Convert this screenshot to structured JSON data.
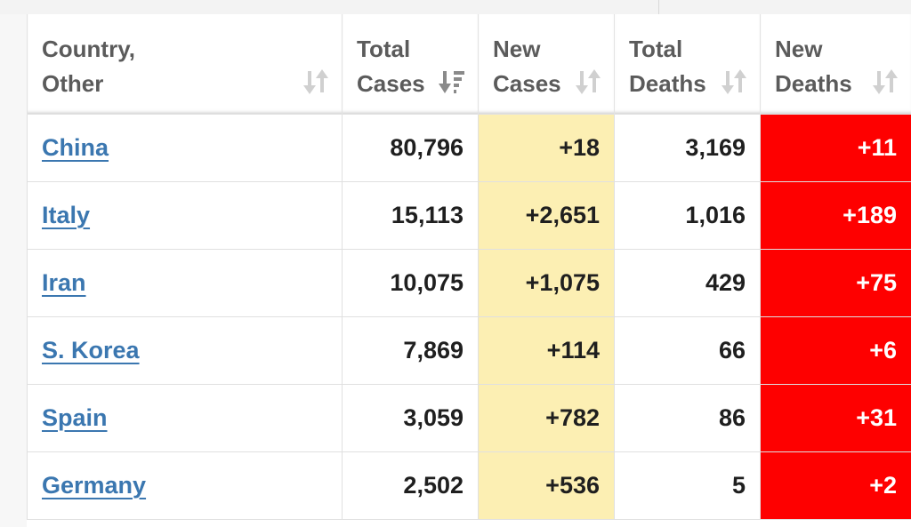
{
  "colors": {
    "link": "#3b77b0",
    "new_cases_bg": "#fcefb3",
    "new_deaths_bg": "#fe0000",
    "header_text": "#5b5b5b"
  },
  "table": {
    "headers": {
      "country": "Country,\nOther",
      "total_cases": "Total\nCases",
      "new_cases": "New\nCases",
      "total_deaths": "Total\nDeaths",
      "new_deaths": "New\nDeaths"
    },
    "sort_icons": {
      "country": "sort-neutral-icon",
      "total_cases": "sort-descending-icon",
      "new_cases": "sort-neutral-icon",
      "total_deaths": "sort-neutral-icon",
      "new_deaths": "sort-neutral-icon"
    },
    "rows": [
      {
        "country": "China",
        "total_cases": "80,796",
        "new_cases": "+18",
        "total_deaths": "3,169",
        "new_deaths": "+11"
      },
      {
        "country": "Italy",
        "total_cases": "15,113",
        "new_cases": "+2,651",
        "total_deaths": "1,016",
        "new_deaths": "+189"
      },
      {
        "country": "Iran",
        "total_cases": "10,075",
        "new_cases": "+1,075",
        "total_deaths": "429",
        "new_deaths": "+75"
      },
      {
        "country": "S. Korea",
        "total_cases": "7,869",
        "new_cases": "+114",
        "total_deaths": "66",
        "new_deaths": "+6"
      },
      {
        "country": "Spain",
        "total_cases": "3,059",
        "new_cases": "+782",
        "total_deaths": "86",
        "new_deaths": "+31"
      },
      {
        "country": "Germany",
        "total_cases": "2,502",
        "new_cases": "+536",
        "total_deaths": "5",
        "new_deaths": "+2"
      }
    ]
  }
}
